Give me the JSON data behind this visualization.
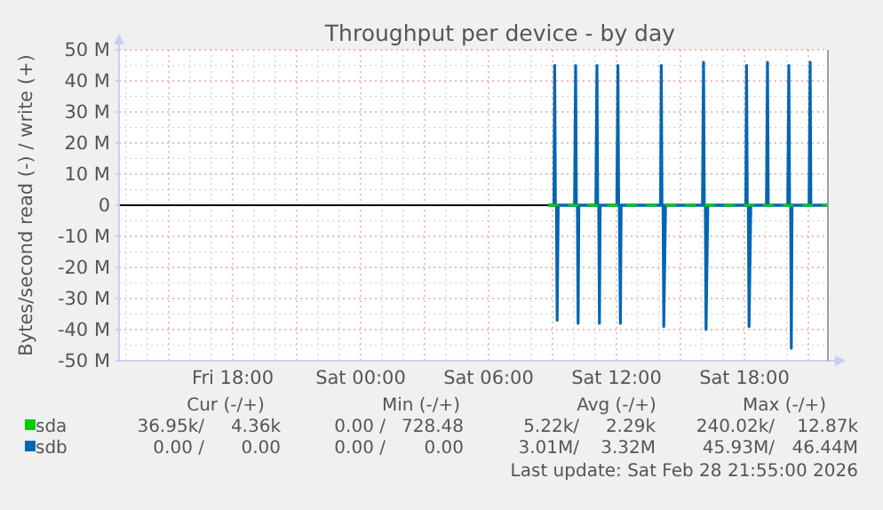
{
  "chart_data": {
    "type": "line",
    "title": "Throughput per device - by day",
    "ylabel": "Bytes/second read (-) / write (+)",
    "xlim": [
      "2026-02-27T12:40",
      "2026-02-28T21:55"
    ],
    "xticks": [
      {
        "value": "2026-02-27T15:00",
        "label": null
      },
      {
        "value": "2026-02-27T18:00",
        "label": "Fri 18:00"
      },
      {
        "value": "2026-02-27T21:00",
        "label": null
      },
      {
        "value": "2026-02-28T00:00",
        "label": "Sat 00:00"
      },
      {
        "value": "2026-02-28T03:00",
        "label": null
      },
      {
        "value": "2026-02-28T06:00",
        "label": "Sat 06:00"
      },
      {
        "value": "2026-02-28T09:00",
        "label": null
      },
      {
        "value": "2026-02-28T12:00",
        "label": "Sat 12:00"
      },
      {
        "value": "2026-02-28T15:00",
        "label": null
      },
      {
        "value": "2026-02-28T18:00",
        "label": "Sat 18:00"
      },
      {
        "value": "2026-02-28T21:00",
        "label": null
      }
    ],
    "ylim": [
      -50,
      50
    ],
    "yticks": [
      {
        "value": -50,
        "label": "-50 M"
      },
      {
        "value": -40,
        "label": "-40 M"
      },
      {
        "value": -30,
        "label": "-30 M"
      },
      {
        "value": -20,
        "label": "-20 M"
      },
      {
        "value": -10,
        "label": "-10 M"
      },
      0,
      {
        "value": 10,
        "label": "10 M"
      },
      {
        "value": 20,
        "label": "20 M"
      },
      {
        "value": 30,
        "label": "30 M"
      },
      {
        "value": 40,
        "label": "40 M"
      },
      {
        "value": 50,
        "label": "50 M"
      }
    ],
    "grid": true,
    "legend": "bottom",
    "marker": "none",
    "line_style": "solid",
    "ref_lines": [
      {
        "axis": "y",
        "value": 0,
        "color": "#000000"
      }
    ],
    "series": [
      {
        "name": "sda",
        "color": "#00cc00",
        "line_style": "dashed",
        "x": [
          "2026-02-28T08:48",
          "2026-02-28T21:54"
        ],
        "values": [
          0,
          0
        ]
      },
      {
        "name": "sdb",
        "color": "#0066b3",
        "x": [
          "2026-02-28T08:48",
          "2026-02-28T09:04",
          "2026-02-28T09:06",
          "2026-02-28T09:08",
          "2026-02-28T10:02",
          "2026-02-28T10:05",
          "2026-02-28T10:07",
          "2026-02-28T11:02",
          "2026-02-28T11:05",
          "2026-02-28T11:07",
          "2026-02-28T12:01",
          "2026-02-28T12:04",
          "2026-02-28T12:06",
          "2026-02-28T14:04",
          "2026-02-28T14:06",
          "2026-02-28T14:08",
          "2026-02-28T16:02",
          "2026-02-28T16:05",
          "2026-02-28T16:07",
          "2026-02-28T18:04",
          "2026-02-28T18:06",
          "2026-02-28T18:08",
          "2026-02-28T19:02",
          "2026-02-28T19:05",
          "2026-02-28T19:07",
          "2026-02-28T20:02",
          "2026-02-28T20:05",
          "2026-02-28T20:07",
          "2026-02-28T21:02",
          "2026-02-28T21:05",
          "2026-02-28T21:07",
          "2026-02-28T21:54"
        ],
        "values": [
          0,
          0,
          45,
          0,
          0,
          45,
          0,
          0,
          45,
          0,
          0,
          45,
          0,
          0,
          45,
          0,
          0,
          46,
          0,
          0,
          45,
          0,
          0,
          46,
          0,
          0,
          45,
          0,
          0,
          46,
          0,
          0
        ]
      },
      {
        "color": "#0066b3",
        "x": [
          "2026-02-28T08:48",
          "2026-02-28T09:11",
          "2026-02-28T09:13",
          "2026-02-28T09:16",
          "2026-02-28T10:10",
          "2026-02-28T10:12",
          "2026-02-28T10:14",
          "2026-02-28T11:10",
          "2026-02-28T11:12",
          "2026-02-28T11:14",
          "2026-02-28T12:08",
          "2026-02-28T12:11",
          "2026-02-28T12:13",
          "2026-02-28T14:11",
          "2026-02-28T14:13",
          "2026-02-28T14:18",
          "2026-02-28T16:10",
          "2026-02-28T16:12",
          "2026-02-28T16:17",
          "2026-02-28T18:11",
          "2026-02-28T18:13",
          "2026-02-28T18:18",
          "2026-02-28T20:10",
          "2026-02-28T20:12",
          "2026-02-28T20:14",
          "2026-02-28T21:54"
        ],
        "values": [
          0,
          0,
          -37,
          0,
          0,
          -38,
          0,
          0,
          -38,
          0,
          0,
          -38,
          0,
          0,
          -39,
          0,
          0,
          -40,
          0,
          0,
          -39,
          0,
          0,
          -46,
          0,
          0
        ]
      }
    ],
    "annotations": [
      "Cur (-/+)",
      "Min (-/+)",
      "Avg (-/+)",
      "Max (-/+)",
      "36.95k/",
      "4.36k",
      "0.00 /",
      "728.48",
      "5.22k/",
      "2.29k",
      "240.02k/",
      "12.87k",
      "0.00 /",
      "0.00",
      "0.00 /",
      "0.00",
      "3.01M/",
      "3.32M",
      "45.93M/",
      "46.44M",
      "Last update: Sat Feb 28 21:55:00 2026"
    ]
  }
}
